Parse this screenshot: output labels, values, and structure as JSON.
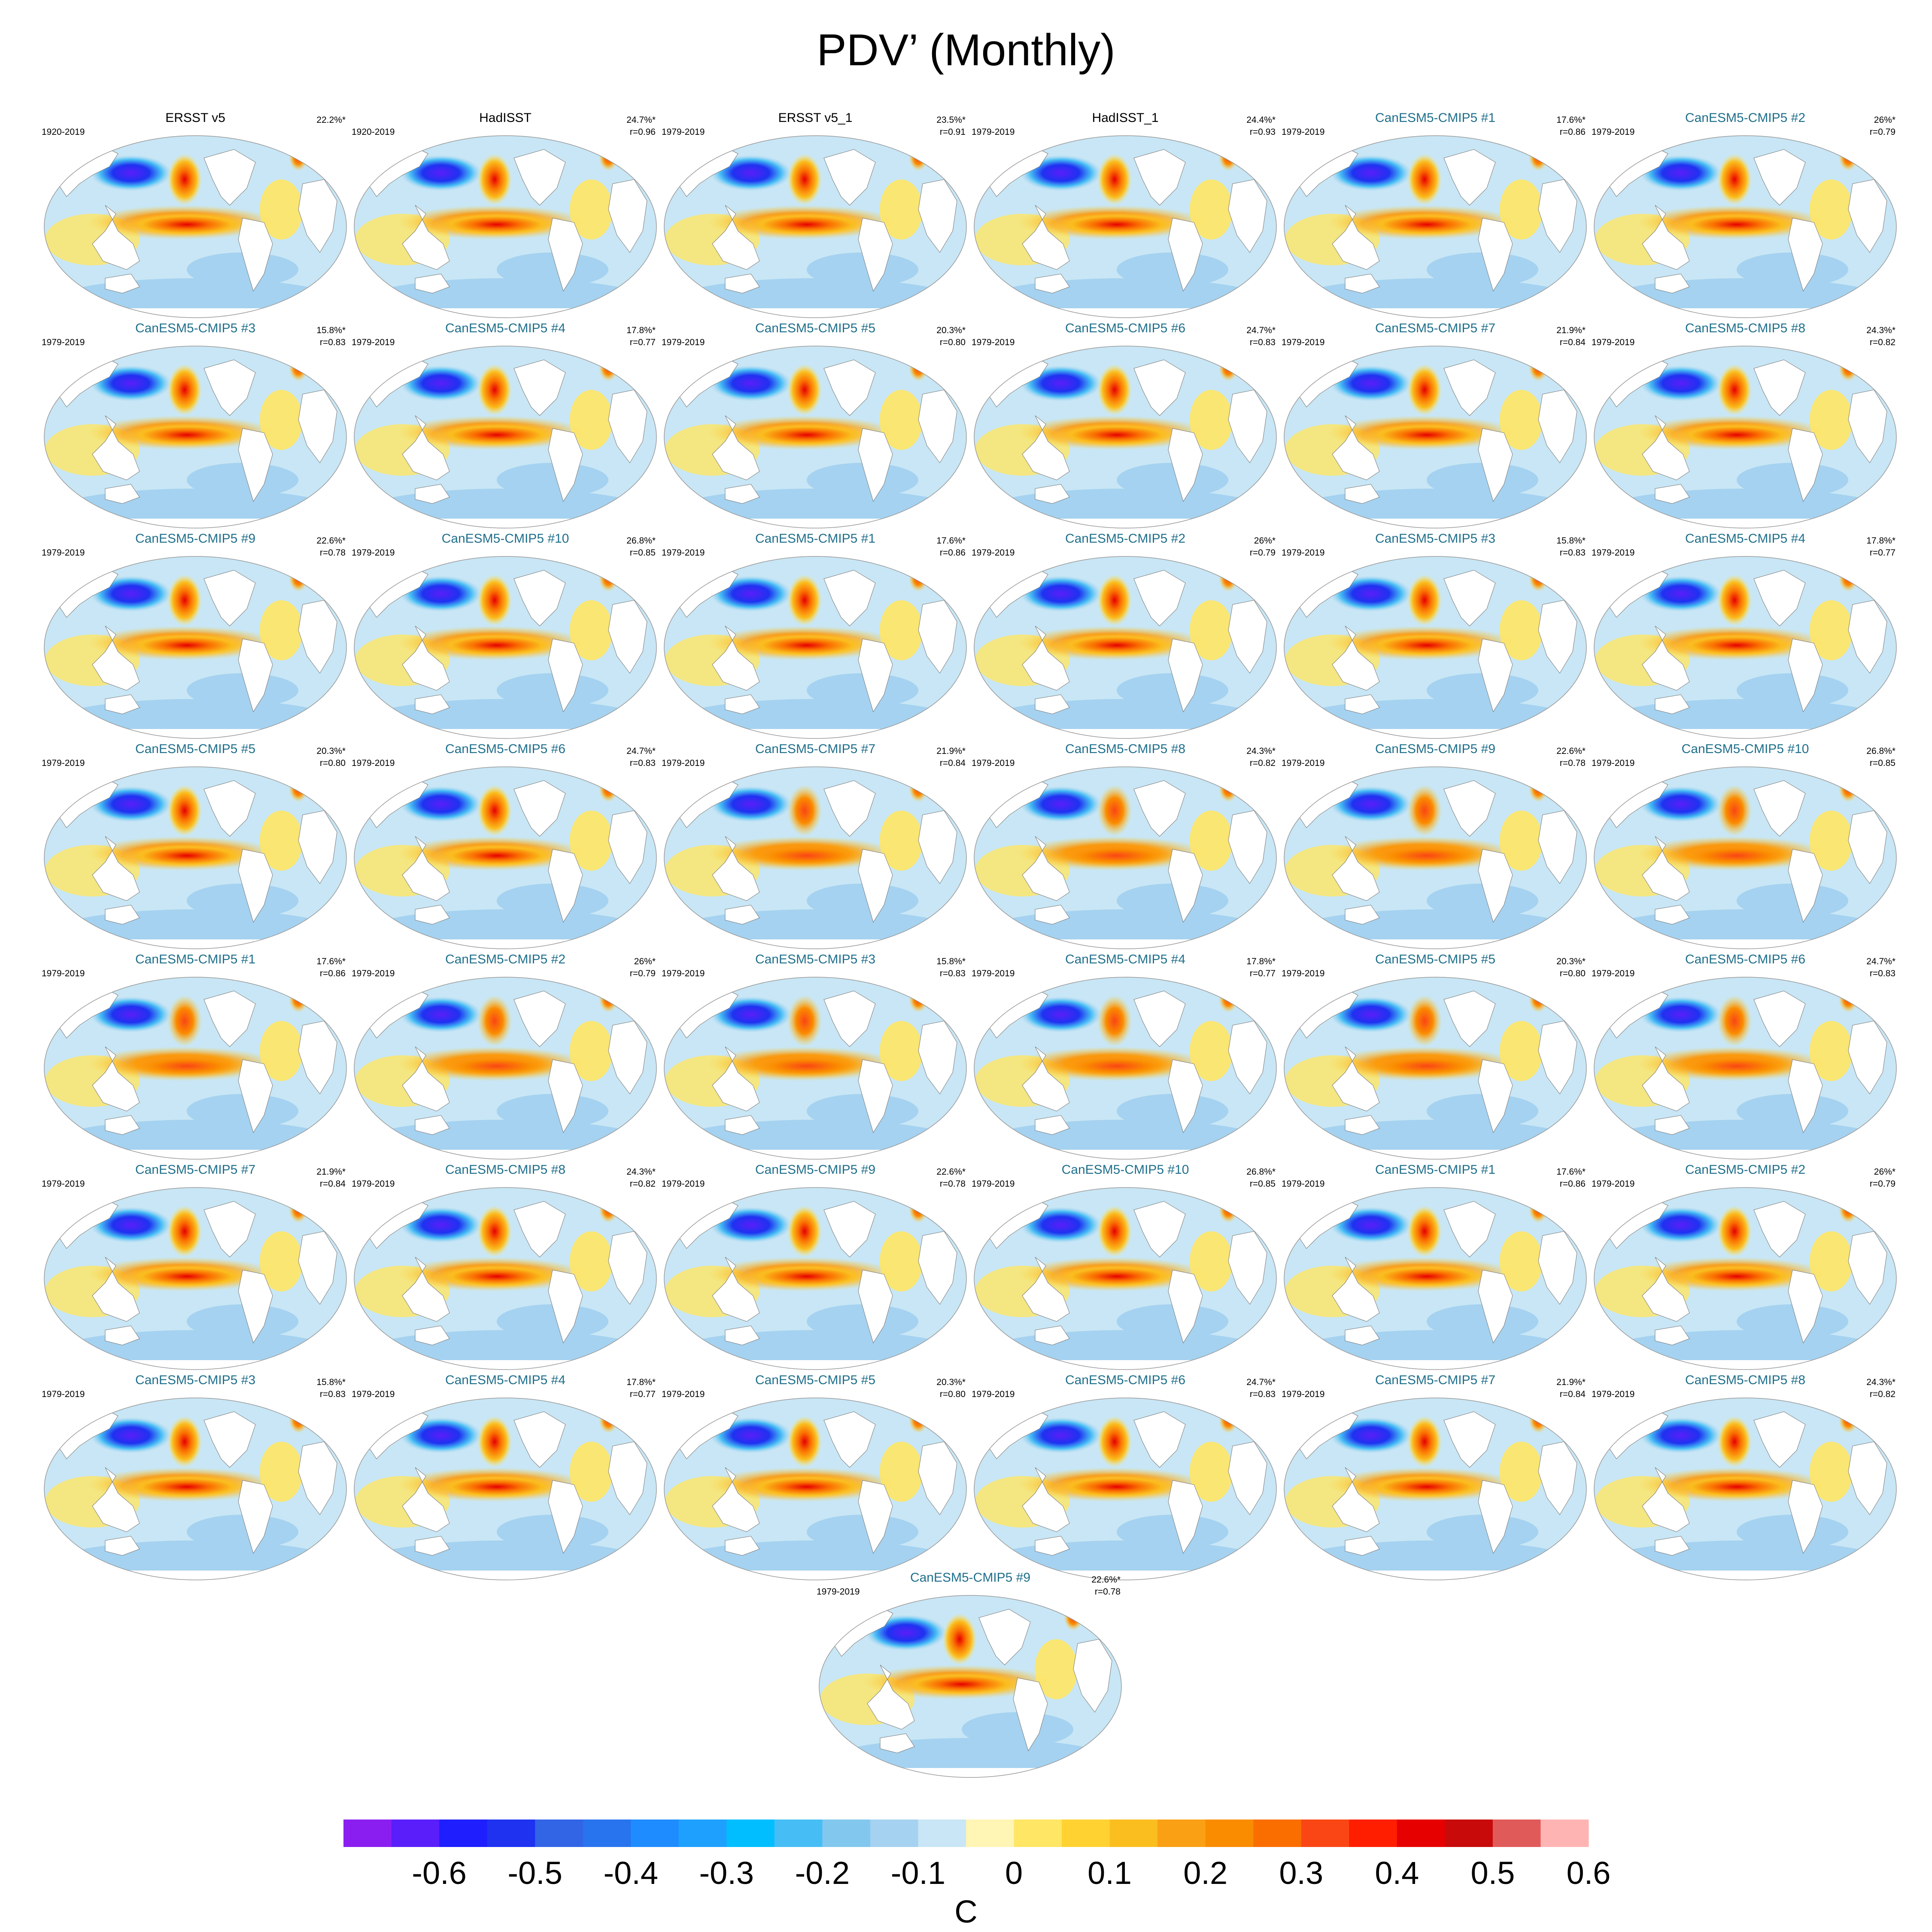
{
  "title": "PDV’ (Monthly)",
  "colorbar": {
    "units": "C",
    "colors": [
      "#8a1ef0",
      "#5a1efa",
      "#1e1eff",
      "#1e32f0",
      "#3264e6",
      "#2873ee",
      "#1e8cff",
      "#1ea0ff",
      "#00beff",
      "#46bef5",
      "#82c8ee",
      "#a5d2f0",
      "#c8e6f5",
      "#fff5b4",
      "#ffe664",
      "#ffd232",
      "#fabe1e",
      "#faa014",
      "#fa8c00",
      "#fa6e00",
      "#fa4614",
      "#ff1e00",
      "#e60000",
      "#c80a0a",
      "#e15a5a",
      "#ffb4b4"
    ],
    "tick_labels": [
      "-0.6",
      "-0.5",
      "-0.4",
      "-0.3",
      "-0.2",
      "-0.1",
      "0",
      "0.1",
      "0.2",
      "0.3",
      "0.4",
      "0.5",
      "0.6"
    ]
  },
  "panels": [
    {
      "title": "ERSST v5",
      "period": "1920-2019",
      "pct": "22.2%*",
      "r": "",
      "kind": "obs"
    },
    {
      "title": "HadISST",
      "period": "1920-2019",
      "pct": "24.7%*",
      "r": "r=0.96",
      "kind": "obs"
    },
    {
      "title": "ERSST v5_1",
      "period": "1979-2019",
      "pct": "23.5%*",
      "r": "r=0.91",
      "kind": "obs"
    },
    {
      "title": "HadISST_1",
      "period": "1979-2019",
      "pct": "24.4%*",
      "r": "r=0.93",
      "kind": "obs"
    },
    {
      "title": "CanESM5-CMIP5 #1",
      "period": "1979-2019",
      "pct": "17.6%*",
      "r": "r=0.86",
      "kind": "model"
    },
    {
      "title": "CanESM5-CMIP5 #2",
      "period": "1979-2019",
      "pct": "26%*",
      "r": "r=0.79",
      "kind": "model"
    },
    {
      "title": "CanESM5-CMIP5 #3",
      "period": "1979-2019",
      "pct": "15.8%*",
      "r": "r=0.83",
      "kind": "model"
    },
    {
      "title": "CanESM5-CMIP5 #4",
      "period": "1979-2019",
      "pct": "17.8%*",
      "r": "r=0.77",
      "kind": "model"
    },
    {
      "title": "CanESM5-CMIP5 #5",
      "period": "1979-2019",
      "pct": "20.3%*",
      "r": "r=0.80",
      "kind": "model"
    },
    {
      "title": "CanESM5-CMIP5 #6",
      "period": "1979-2019",
      "pct": "24.7%*",
      "r": "r=0.83",
      "kind": "model"
    },
    {
      "title": "CanESM5-CMIP5 #7",
      "period": "1979-2019",
      "pct": "21.9%*",
      "r": "r=0.84",
      "kind": "model"
    },
    {
      "title": "CanESM5-CMIP5 #8",
      "period": "1979-2019",
      "pct": "24.3%*",
      "r": "r=0.82",
      "kind": "model"
    },
    {
      "title": "CanESM5-CMIP5 #9",
      "period": "1979-2019",
      "pct": "22.6%*",
      "r": "r=0.78",
      "kind": "model"
    },
    {
      "title": "CanESM5-CMIP5 #10",
      "period": "1979-2019",
      "pct": "26.8%*",
      "r": "r=0.85",
      "kind": "model"
    },
    {
      "title": "CanESM5-CMIP5 #1",
      "period": "1979-2019",
      "pct": "17.6%*",
      "r": "r=0.86",
      "kind": "model"
    },
    {
      "title": "CanESM5-CMIP5 #2",
      "period": "1979-2019",
      "pct": "26%*",
      "r": "r=0.79",
      "kind": "model"
    },
    {
      "title": "CanESM5-CMIP5 #3",
      "period": "1979-2019",
      "pct": "15.8%*",
      "r": "r=0.83",
      "kind": "model"
    },
    {
      "title": "CanESM5-CMIP5 #4",
      "period": "1979-2019",
      "pct": "17.8%*",
      "r": "r=0.77",
      "kind": "model"
    },
    {
      "title": "CanESM5-CMIP5 #5",
      "period": "1979-2019",
      "pct": "20.3%*",
      "r": "r=0.80",
      "kind": "model"
    },
    {
      "title": "CanESM5-CMIP5 #6",
      "period": "1979-2019",
      "pct": "24.7%*",
      "r": "r=0.83",
      "kind": "model"
    },
    {
      "title": "CanESM5-CMIP5 #7",
      "period": "1979-2019",
      "pct": "21.9%*",
      "r": "r=0.84",
      "kind": "model"
    },
    {
      "title": "CanESM5-CMIP5 #8",
      "period": "1979-2019",
      "pct": "24.3%*",
      "r": "r=0.82",
      "kind": "model"
    },
    {
      "title": "CanESM5-CMIP5 #9",
      "period": "1979-2019",
      "pct": "22.6%*",
      "r": "r=0.78",
      "kind": "model"
    },
    {
      "title": "CanESM5-CMIP5 #10",
      "period": "1979-2019",
      "pct": "26.8%*",
      "r": "r=0.85",
      "kind": "model"
    },
    {
      "title": "CanESM5-CMIP5 #1",
      "period": "1979-2019",
      "pct": "17.6%*",
      "r": "r=0.86",
      "kind": "model"
    },
    {
      "title": "CanESM5-CMIP5 #2",
      "period": "1979-2019",
      "pct": "26%*",
      "r": "r=0.79",
      "kind": "model"
    },
    {
      "title": "CanESM5-CMIP5 #3",
      "period": "1979-2019",
      "pct": "15.8%*",
      "r": "r=0.83",
      "kind": "model"
    },
    {
      "title": "CanESM5-CMIP5 #4",
      "period": "1979-2019",
      "pct": "17.8%*",
      "r": "r=0.77",
      "kind": "model"
    },
    {
      "title": "CanESM5-CMIP5 #5",
      "period": "1979-2019",
      "pct": "20.3%*",
      "r": "r=0.80",
      "kind": "model"
    },
    {
      "title": "CanESM5-CMIP5 #6",
      "period": "1979-2019",
      "pct": "24.7%*",
      "r": "r=0.83",
      "kind": "model"
    },
    {
      "title": "CanESM5-CMIP5 #7",
      "period": "1979-2019",
      "pct": "21.9%*",
      "r": "r=0.84",
      "kind": "model"
    },
    {
      "title": "CanESM5-CMIP5 #8",
      "period": "1979-2019",
      "pct": "24.3%*",
      "r": "r=0.82",
      "kind": "model"
    },
    {
      "title": "CanESM5-CMIP5 #9",
      "period": "1979-2019",
      "pct": "22.6%*",
      "r": "r=0.78",
      "kind": "model"
    },
    {
      "title": "CanESM5-CMIP5 #10",
      "period": "1979-2019",
      "pct": "26.8%*",
      "r": "r=0.85",
      "kind": "model"
    },
    {
      "title": "CanESM5-CMIP5 #1",
      "period": "1979-2019",
      "pct": "17.6%*",
      "r": "r=0.86",
      "kind": "model"
    },
    {
      "title": "CanESM5-CMIP5 #2",
      "period": "1979-2019",
      "pct": "26%*",
      "r": "r=0.79",
      "kind": "model"
    },
    {
      "title": "CanESM5-CMIP5 #3",
      "period": "1979-2019",
      "pct": "15.8%*",
      "r": "r=0.83",
      "kind": "model"
    },
    {
      "title": "CanESM5-CMIP5 #4",
      "period": "1979-2019",
      "pct": "17.8%*",
      "r": "r=0.77",
      "kind": "model"
    },
    {
      "title": "CanESM5-CMIP5 #5",
      "period": "1979-2019",
      "pct": "20.3%*",
      "r": "r=0.80",
      "kind": "model"
    },
    {
      "title": "CanESM5-CMIP5 #6",
      "period": "1979-2019",
      "pct": "24.7%*",
      "r": "r=0.83",
      "kind": "model"
    },
    {
      "title": "CanESM5-CMIP5 #7",
      "period": "1979-2019",
      "pct": "21.9%*",
      "r": "r=0.84",
      "kind": "model"
    },
    {
      "title": "CanESM5-CMIP5 #8",
      "period": "1979-2019",
      "pct": "24.3%*",
      "r": "r=0.82",
      "kind": "model"
    },
    {
      "title": "CanESM5-CMIP5 #9",
      "period": "1979-2019",
      "pct": "22.6%*",
      "r": "r=0.78",
      "kind": "model"
    }
  ]
}
